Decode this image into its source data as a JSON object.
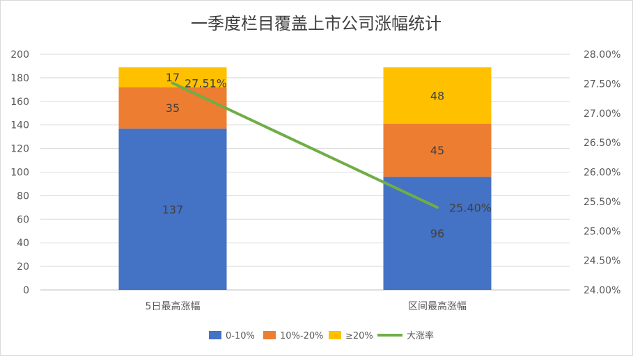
{
  "chart_data": {
    "type": "bar",
    "title": "一季度栏目覆盖上市公司涨幅统计",
    "categories": [
      "5日最高涨幅",
      "区间最高涨幅"
    ],
    "series": [
      {
        "name": "0-10%",
        "values": [
          137,
          96
        ],
        "color": "#4472C4"
      },
      {
        "name": "10%-20%",
        "values": [
          35,
          45
        ],
        "color": "#ED7D31"
      },
      {
        "name": "≥20%",
        "values": [
          17,
          48
        ],
        "color": "#FFC000"
      }
    ],
    "line_series": {
      "name": "大涨率",
      "values": [
        27.51,
        25.4
      ],
      "labels": [
        "27.51%",
        "25.40%"
      ],
      "color": "#70AD47"
    },
    "ylim": [
      0,
      200
    ],
    "yticks": [
      "0",
      "20",
      "40",
      "60",
      "80",
      "100",
      "120",
      "140",
      "160",
      "180",
      "200"
    ],
    "y2lim": [
      24.0,
      28.0
    ],
    "y2ticks": [
      "24.00%",
      "24.50%",
      "25.00%",
      "25.50%",
      "26.00%",
      "26.50%",
      "27.00%",
      "27.50%",
      "28.00%"
    ],
    "grid": true,
    "legend": "bottom"
  }
}
